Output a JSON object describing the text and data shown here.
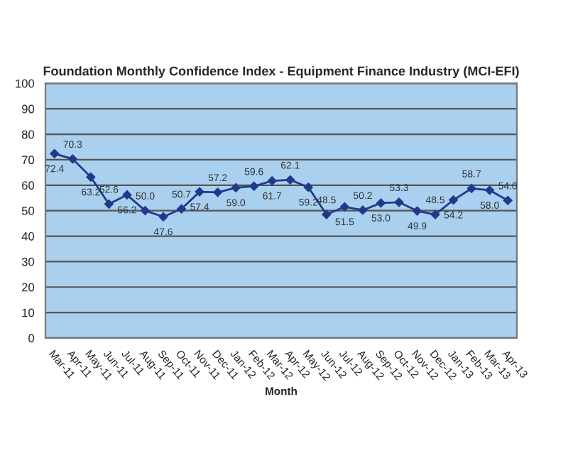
{
  "chart_data": {
    "type": "line",
    "title": "Foundation Monthly Confidence Index - Equipment Finance Industry (MCI-EFI)",
    "xlabel": "Month",
    "categories": [
      "Mar-11",
      "Apr-11",
      "May-11",
      "Jun-11",
      "Jul-11",
      "Aug-11",
      "Sep-11",
      "Oct-11",
      "Nov-11",
      "Dec-11",
      "Jan-12",
      "Feb-12",
      "Mar-12",
      "Apr-12",
      "May-12",
      "Jun-12",
      "Jul-12",
      "Aug-12",
      "Sep-12",
      "Oct-12",
      "Nov-12",
      "Dec-12",
      "Jan-13",
      "Feb-13",
      "Mar-13",
      "Apr-13"
    ],
    "series": [
      {
        "color": "#1f3a8a",
        "values": [
          72.4,
          70.3,
          63.2,
          52.6,
          56.2,
          50.0,
          47.6,
          50.7,
          57.4,
          57.2,
          59.0,
          59.6,
          61.7,
          62.1,
          59.2,
          48.5,
          51.5,
          50.2,
          53.0,
          53.3,
          49.9,
          48.5,
          54.2,
          58.7,
          58.0,
          54.0
        ],
        "value_labels": [
          "72.4",
          "70.3",
          "63.2",
          "52.6",
          "56.2",
          "50.0",
          "47.6",
          "50.7",
          "57.4",
          "57.2",
          "59.0",
          "59.6",
          "61.7",
          "62.1",
          "59.2",
          "48.5",
          "51.5",
          "50.2",
          "53.0",
          "53.3",
          "49.9",
          "48.5",
          "54.2",
          "58.7",
          "58.0",
          "54.0"
        ]
      }
    ],
    "ylim": [
      0,
      100
    ],
    "yticks": [
      0,
      10,
      20,
      30,
      40,
      50,
      60,
      70,
      80,
      90,
      100
    ],
    "grid": "y",
    "marker": "diamond",
    "line_style": "solid",
    "legend": false
  }
}
